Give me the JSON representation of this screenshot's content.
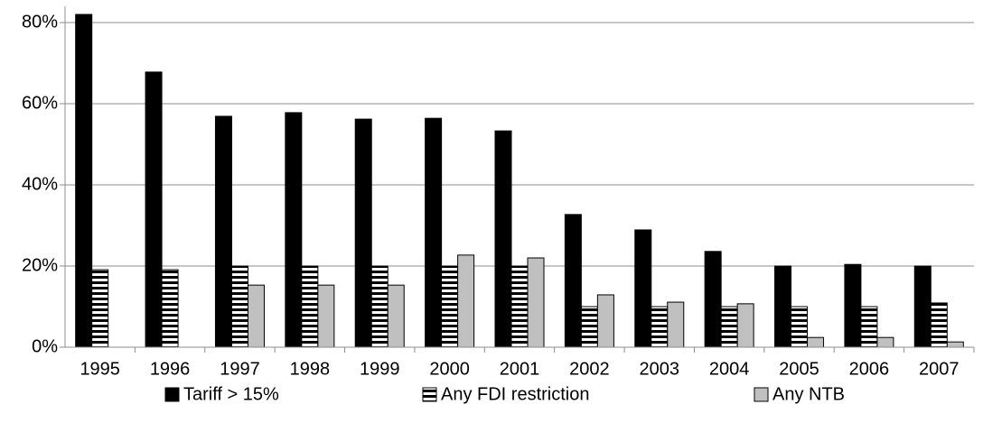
{
  "chart_data": {
    "type": "bar",
    "categories": [
      "1995",
      "1996",
      "1997",
      "1998",
      "1999",
      "2000",
      "2001",
      "2002",
      "2003",
      "2004",
      "2005",
      "2006",
      "2007"
    ],
    "series": [
      {
        "name": "Tariff > 15%",
        "color": "#000000",
        "values": [
          82,
          67.8,
          56.9,
          57.8,
          56.2,
          56.4,
          53.3,
          32.7,
          28.9,
          23.6,
          20,
          20.4,
          20
        ]
      },
      {
        "name": "Any FDI restriction",
        "color": "#000000",
        "hatch": "horizontal",
        "values": [
          19.1,
          19.1,
          20,
          20,
          20,
          20,
          20,
          10,
          10,
          10,
          10,
          10,
          10.9
        ]
      },
      {
        "name": "Any NTB",
        "color": "#c0c0c0",
        "values": [
          null,
          null,
          15.3,
          15.3,
          15.3,
          22.7,
          22,
          12.9,
          11.1,
          10.7,
          2.4,
          2.4,
          1.3
        ]
      }
    ],
    "ylim": [
      0,
      84
    ],
    "yticks": [
      {
        "value": 0,
        "label": "0%"
      },
      {
        "value": 20,
        "label": "20%"
      },
      {
        "value": 40,
        "label": "40%"
      },
      {
        "value": 60,
        "label": "60%"
      },
      {
        "value": 80,
        "label": "80%"
      }
    ],
    "grid": true,
    "legend": "bottom"
  }
}
